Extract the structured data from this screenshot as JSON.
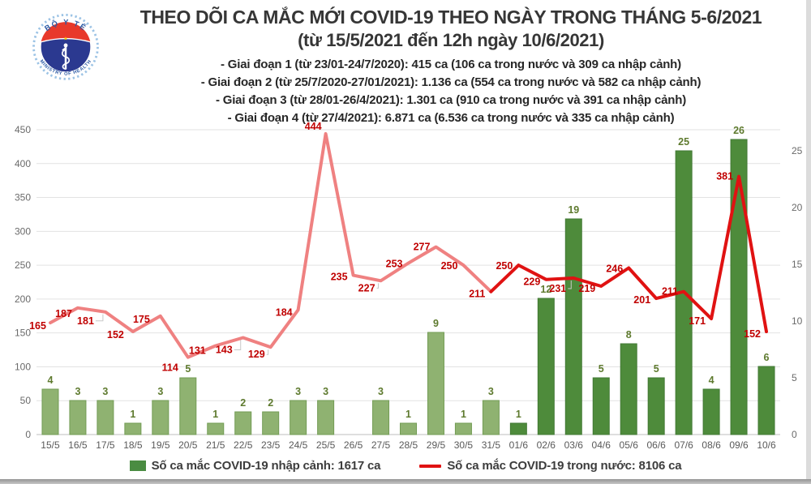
{
  "header": {
    "title_line1": "THEO DÕI CA MẮC MỚI COVID-19 THEO NGÀY TRONG THÁNG 5-6/2021",
    "title_line2": "(từ 15/5/2021 đến 12h ngày 10/6/2021)",
    "phases": [
      "- Giai đoạn 1 (từ 23/01-24/7/2020): 415 ca (106 ca trong nước và 309 ca nhập cảnh)",
      "- Giai đoạn 2 (từ 25/7/2020-27/01/2021): 1.136 ca (554 ca trong nước và 582 ca nhập cảnh)",
      "- Giai đoạn 3 (từ 28/01-26/4/2021): 1.301 ca (910 ca trong nước và 391 ca nhập cảnh)",
      "- Giai đoạn 4 (từ 27/4/2021): 6.871 ca (6.536 ca trong nước và 335 ca nhập cảnh)"
    ],
    "logo": {
      "top_text": "BỘ Y TẾ",
      "bottom_text": "MINISTRY OF HEALTH"
    }
  },
  "chart_data": {
    "type": "combo",
    "categories": [
      "15/5",
      "16/5",
      "17/5",
      "18/5",
      "19/5",
      "20/5",
      "21/5",
      "22/5",
      "23/5",
      "24/5",
      "25/5",
      "26/5",
      "27/5",
      "28/5",
      "29/5",
      "30/5",
      "31/5",
      "01/6",
      "02/6",
      "03/6",
      "04/6",
      "05/6",
      "06/6",
      "07/6",
      "08/6",
      "09/6",
      "10/6"
    ],
    "series": [
      {
        "name": "Số ca mắc COVID-19 nhập cảnh",
        "type": "bar",
        "axis": "right",
        "values": [
          4,
          3,
          3,
          1,
          3,
          5,
          1,
          2,
          2,
          3,
          3,
          0,
          3,
          1,
          9,
          1,
          3,
          1,
          12,
          19,
          5,
          8,
          5,
          25,
          4,
          26,
          6
        ]
      },
      {
        "name": "Số ca mắc COVID-19 trong nước",
        "type": "line",
        "axis": "left",
        "values": [
          165,
          187,
          181,
          152,
          175,
          114,
          131,
          143,
          129,
          184,
          444,
          235,
          227,
          253,
          277,
          250,
          211,
          250,
          229,
          231,
          219,
          246,
          201,
          211,
          171,
          381,
          152
        ]
      }
    ],
    "left_axis": {
      "min": 0,
      "max": 450,
      "step": 50
    },
    "right_axis": {
      "min": 0,
      "max": 25,
      "step": 5
    },
    "grid": true,
    "legend_position": "bottom",
    "may_june_boundary_index": 17,
    "line_color_split_index": 16,
    "colors": {
      "bar_may": "#8fb271",
      "bar_may_border": "#739c55",
      "bar_june": "#4e8b3b",
      "bar_june_border": "#427934",
      "line_may": "#ef8181",
      "line_june": "#e01212",
      "bar_label": "#5e7a2e",
      "line_label": "#c00000",
      "legend_bar_swatch": "#4a8c42",
      "legend_line_swatch": "#e01212"
    }
  },
  "legend": {
    "bar_label": "Số ca mắc COVID-19 nhập cảnh: 1617 ca",
    "line_label": "Số ca mắc COVID-19 trong nước: 8106 ca"
  }
}
